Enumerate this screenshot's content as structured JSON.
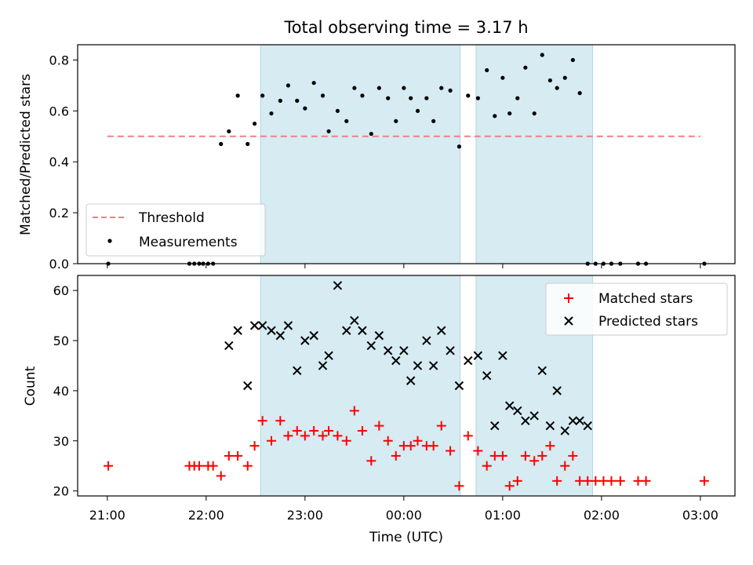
{
  "chart_data": {
    "title": "Total observing time = 3.17 h",
    "xlabel": "Time (UTC)",
    "x_unit": "hours since 21:00 UTC",
    "xlim": [
      -0.3,
      6.35
    ],
    "x_ticks": [
      {
        "x": 0,
        "label": "21:00"
      },
      {
        "x": 1,
        "label": "22:00"
      },
      {
        "x": 2,
        "label": "23:00"
      },
      {
        "x": 3,
        "label": "00:00"
      },
      {
        "x": 4,
        "label": "01:00"
      },
      {
        "x": 5,
        "label": "02:00"
      },
      {
        "x": 6,
        "label": "03:00"
      }
    ],
    "shaded_intervals": [
      [
        1.55,
        3.57
      ],
      [
        3.73,
        4.91
      ]
    ],
    "shade_color": "#add8e6",
    "top": {
      "type": "scatter",
      "ylabel": "Matched/Predicted stars",
      "ylim": [
        0,
        0.86
      ],
      "y_ticks": [
        0.0,
        0.2,
        0.4,
        0.6,
        0.8
      ],
      "threshold": {
        "name": "Threshold",
        "y": 0.5,
        "x_range": [
          0.0,
          6.0
        ],
        "color": "#f08080"
      },
      "measurements": {
        "name": "Measurements",
        "color": "#000000",
        "x": [
          0.01,
          0.83,
          0.88,
          0.93,
          0.97,
          1.02,
          1.07,
          1.15,
          1.23,
          1.32,
          1.42,
          1.49,
          1.57,
          1.66,
          1.75,
          1.83,
          1.92,
          2.0,
          2.09,
          2.18,
          2.24,
          2.33,
          2.42,
          2.5,
          2.58,
          2.67,
          2.75,
          2.84,
          2.92,
          3.0,
          3.07,
          3.14,
          3.23,
          3.3,
          3.38,
          3.47,
          3.56,
          3.65,
          3.75,
          3.84,
          3.92,
          4.0,
          4.07,
          4.15,
          4.23,
          4.32,
          4.4,
          4.48,
          4.55,
          4.63,
          4.71,
          4.78,
          4.86,
          4.94,
          5.02,
          5.1,
          5.19,
          5.37,
          5.45,
          6.04
        ],
        "y": [
          0.0,
          0.0,
          0.0,
          0.0,
          0.0,
          0.0,
          0.0,
          0.47,
          0.52,
          0.66,
          0.47,
          0.55,
          0.66,
          0.59,
          0.64,
          0.7,
          0.64,
          0.61,
          0.71,
          0.66,
          0.52,
          0.6,
          0.56,
          0.69,
          0.66,
          0.51,
          0.69,
          0.65,
          0.56,
          0.69,
          0.65,
          0.6,
          0.65,
          0.56,
          0.69,
          0.68,
          0.46,
          0.66,
          0.65,
          0.76,
          0.58,
          0.73,
          0.59,
          0.65,
          0.77,
          0.59,
          0.82,
          0.72,
          0.69,
          0.73,
          0.8,
          0.67,
          0.0,
          0.0,
          0.0,
          0.0,
          0.0,
          0.0,
          0.0,
          0.0
        ]
      },
      "legend_placement": "lower-left"
    },
    "bottom": {
      "type": "scatter",
      "ylabel": "Count",
      "ylim": [
        19,
        63
      ],
      "y_ticks": [
        20,
        30,
        40,
        50,
        60
      ],
      "legend_placement": "upper-right",
      "series": [
        {
          "name": "Matched stars",
          "marker": "plus",
          "color": "#ff0000",
          "x": [
            0.01,
            0.83,
            0.88,
            0.93,
            1.02,
            1.07,
            1.15,
            1.23,
            1.32,
            1.42,
            1.49,
            1.57,
            1.66,
            1.75,
            1.83,
            1.92,
            2.0,
            2.09,
            2.18,
            2.24,
            2.33,
            2.42,
            2.5,
            2.58,
            2.67,
            2.75,
            2.84,
            2.92,
            3.0,
            3.07,
            3.14,
            3.23,
            3.3,
            3.38,
            3.47,
            3.56,
            3.65,
            3.75,
            3.84,
            3.92,
            4.0,
            4.07,
            4.15,
            4.23,
            4.32,
            4.4,
            4.48,
            4.55,
            4.63,
            4.71,
            4.78,
            4.86,
            4.94,
            5.02,
            5.1,
            5.19,
            5.37,
            5.45,
            6.04
          ],
          "y": [
            25,
            25,
            25,
            25,
            25,
            25,
            23,
            27,
            27,
            25,
            29,
            34,
            30,
            34,
            31,
            32,
            31,
            32,
            31,
            32,
            31,
            30,
            36,
            32,
            26,
            33,
            30,
            27,
            29,
            29,
            30,
            29,
            29,
            33,
            28,
            21,
            31,
            28,
            25,
            27,
            27,
            21,
            22,
            27,
            26,
            27,
            29,
            22,
            25,
            27,
            22,
            22,
            22,
            22,
            22,
            22,
            22,
            22,
            22
          ]
        },
        {
          "name": "Predicted stars",
          "marker": "x",
          "color": "#000000",
          "x": [
            1.23,
            1.32,
            1.42,
            1.49,
            1.57,
            1.66,
            1.75,
            1.83,
            1.92,
            2.0,
            2.09,
            2.18,
            2.24,
            2.33,
            2.42,
            2.5,
            2.58,
            2.67,
            2.75,
            2.84,
            2.92,
            3.0,
            3.07,
            3.14,
            3.23,
            3.3,
            3.38,
            3.47,
            3.56,
            3.65,
            3.75,
            3.84,
            3.92,
            4.0,
            4.07,
            4.15,
            4.23,
            4.32,
            4.4,
            4.48,
            4.55,
            4.63,
            4.71,
            4.78,
            4.86
          ],
          "y": [
            49,
            52,
            41,
            53,
            53,
            52,
            51,
            53,
            44,
            50,
            51,
            45,
            47,
            61,
            52,
            54,
            52,
            49,
            51,
            48,
            46,
            48,
            42,
            45,
            50,
            45,
            52,
            48,
            41,
            46,
            47,
            43,
            33,
            47,
            37,
            36,
            34,
            35,
            44,
            33,
            40,
            32,
            34,
            34,
            33
          ]
        }
      ]
    }
  }
}
